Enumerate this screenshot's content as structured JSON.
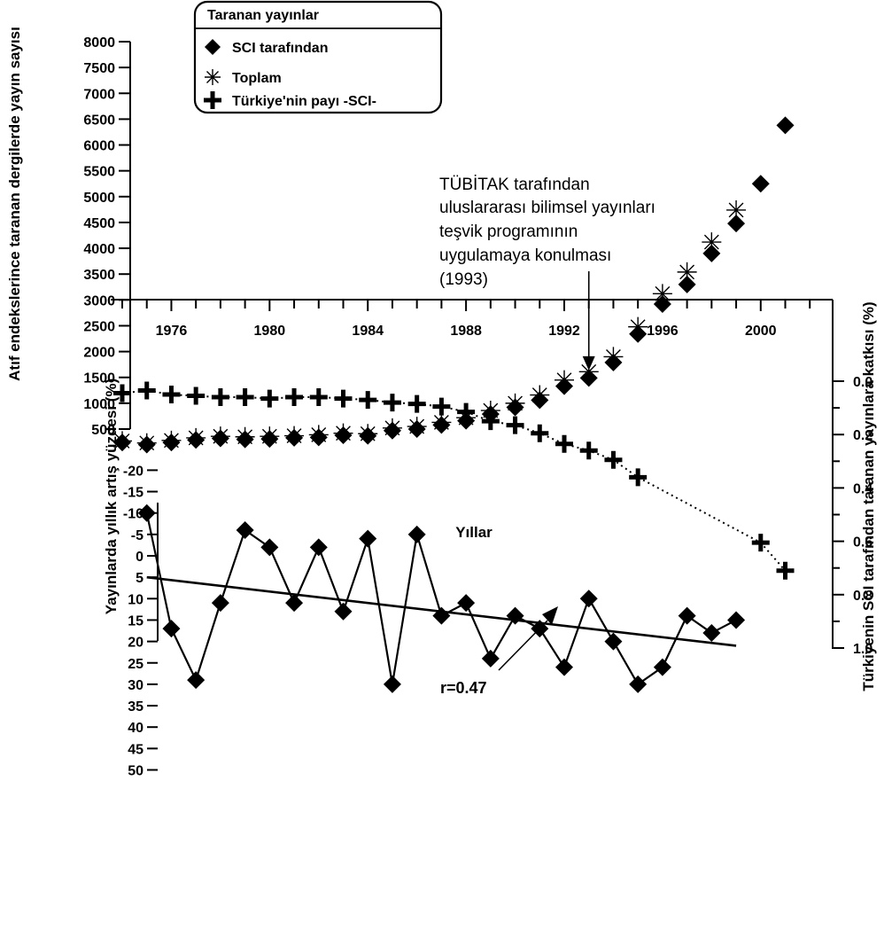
{
  "chart_data": [
    {
      "type": "scatter",
      "title": "",
      "x": [
        1974,
        1975,
        1976,
        1977,
        1978,
        1979,
        1980,
        1981,
        1982,
        1983,
        1984,
        1985,
        1986,
        1987,
        1988,
        1989,
        1990,
        1991,
        1992,
        1993,
        1994,
        1995,
        1996,
        1997,
        1998,
        1999,
        2000,
        2001
      ],
      "xlabel": "Yıllar",
      "x_ticks": [
        1976,
        1980,
        1984,
        1988,
        1992,
        1996,
        2000
      ],
      "xlim": [
        1973.3,
        2003.3
      ],
      "ylabel": "Atıf endekslerince taranan dergilerde yayın sayısı",
      "ylim": [
        0,
        8000
      ],
      "y_ticks": [
        500,
        1000,
        1500,
        2000,
        2500,
        3000,
        3500,
        4000,
        4500,
        5000,
        5500,
        6000,
        6500,
        7000,
        7500,
        8000
      ],
      "series": [
        {
          "name": "SCI tarafından",
          "marker": "diamond",
          "values": [
            240,
            200,
            240,
            290,
            320,
            300,
            310,
            330,
            340,
            380,
            370,
            470,
            500,
            580,
            660,
            790,
            920,
            1060,
            1330,
            1490,
            1790,
            2340,
            2920,
            3300,
            3900,
            4480,
            5250,
            6380
          ]
        },
        {
          "name": "Toplam",
          "marker": "asterisk",
          "values": [
            270,
            230,
            280,
            330,
            360,
            350,
            360,
            370,
            390,
            420,
            410,
            520,
            550,
            630,
            720,
            860,
            1000,
            1160,
            1450,
            1610,
            1900,
            2480,
            3120,
            3540,
            4120,
            4740,
            null,
            null
          ]
        }
      ],
      "legend": {
        "title": "Taranan yayınlar",
        "entries": [
          "SCI tarafından",
          "Toplam",
          "Türkiye'nin payı -SCI-"
        ],
        "position": "top-left"
      },
      "annotations": [
        {
          "text_lines": [
            "TÜBİTAK tarafından",
            "uluslararası bilimsel yayınları",
            "teşvik programının",
            "uygulamaya konulması",
            "(1993)"
          ],
          "arrow_to_x": 1993,
          "arrow_to_y": 1600
        }
      ]
    },
    {
      "type": "line",
      "title": "",
      "x": [
        1975,
        1976,
        1977,
        1978,
        1979,
        1980,
        1981,
        1982,
        1983,
        1984,
        1985,
        1986,
        1987,
        1988,
        1989,
        1990,
        1991,
        1992,
        1993,
        1994,
        1995,
        1996,
        1997,
        1998,
        1999
      ],
      "ylabel": "Yayınlarda yıllık artış yüzdesi (%)",
      "ylim": [
        -20,
        50
      ],
      "y_inverted": true,
      "y_ticks": [
        -20,
        -15,
        -10,
        -5,
        0,
        5,
        10,
        15,
        20,
        25,
        30,
        35,
        40,
        45,
        50
      ],
      "y_ticks_text": [
        "-20",
        "-15",
        "-10",
        "-5",
        "0",
        "5",
        "10",
        "15",
        "20",
        "25",
        "30",
        "35",
        "40",
        "45",
        "50"
      ],
      "series": [
        {
          "name": "Yayınlarda yıllık artış yüzdesi",
          "marker": "diamond",
          "values": [
            -10,
            17,
            29,
            11,
            -6,
            -2,
            11,
            -2,
            13,
            -4,
            30,
            -5,
            14,
            11,
            24,
            14,
            17,
            26,
            10,
            20,
            30,
            26,
            14,
            18,
            15
          ]
        }
      ],
      "trendline": {
        "x": [
          1975,
          1999
        ],
        "y": [
          5,
          21
        ],
        "label": "r=0.47"
      },
      "y2label": "Türkiyenin SCI tarafından taranan yayınlara katkısı (%)",
      "y2lim": [
        0,
        1.0
      ],
      "y2_inverted": true,
      "y2_ticks": [
        0.0,
        0.2,
        0.4,
        0.6,
        0.8,
        1.0
      ],
      "y2_ticks_text": [
        "0.0",
        "0.2",
        "0.4",
        "0.6",
        "0.8",
        "1.0"
      ],
      "y2_series": [
        {
          "name": "Türkiye'nin payı -SCI-",
          "marker": "plus",
          "x": [
            1974,
            1975,
            1976,
            1977,
            1978,
            1979,
            1980,
            1981,
            1982,
            1983,
            1984,
            1985,
            1986,
            1987,
            1988,
            1989,
            1990,
            1991,
            1992,
            1993,
            1994,
            1995,
            1996,
            1997,
            1998,
            1999,
            2000,
            2001
          ],
          "values": [
            0.045,
            0.035,
            0.05,
            0.055,
            0.06,
            0.06,
            0.065,
            0.06,
            0.06,
            0.065,
            0.07,
            0.08,
            0.085,
            0.095,
            0.115,
            0.15,
            0.165,
            0.195,
            0.235,
            0.26,
            0.295,
            0.36,
            null,
            null,
            null,
            null,
            0.605,
            0.71
          ]
        }
      ]
    }
  ]
}
